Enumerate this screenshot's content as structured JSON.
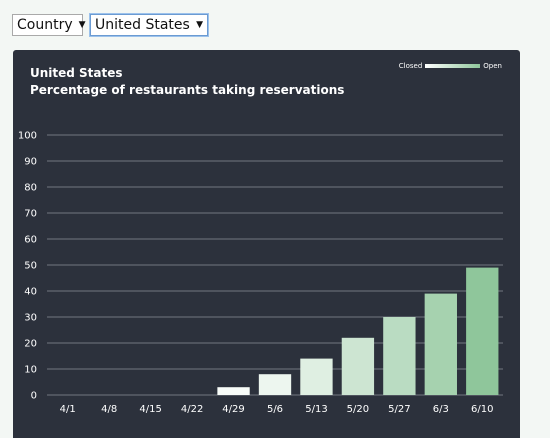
{
  "controls": {
    "country_select": "Country",
    "region_select": "United States"
  },
  "chart_data": {
    "type": "bar",
    "title": "United States",
    "subtitle": "Percentage of restaurants taking reservations",
    "legend": {
      "low_label": "Closed",
      "high_label": "Open",
      "placement": "top-right",
      "low_color": "#ffffff",
      "high_color": "#8fc69b"
    },
    "categories": [
      "4/1",
      "4/8",
      "4/15",
      "4/22",
      "4/29",
      "5/6",
      "5/13",
      "5/20",
      "5/27",
      "6/3",
      "6/10"
    ],
    "values": [
      0,
      0,
      0,
      0,
      3,
      8,
      14,
      22,
      30,
      39,
      49
    ],
    "ylim": [
      0,
      100
    ],
    "yticks": [
      "0",
      "10",
      "20",
      "30",
      "40",
      "50",
      "60",
      "70",
      "80",
      "90",
      "100"
    ],
    "grid": true,
    "colors": {
      "background": "#2c313c",
      "grid": "#8a8f99"
    }
  }
}
